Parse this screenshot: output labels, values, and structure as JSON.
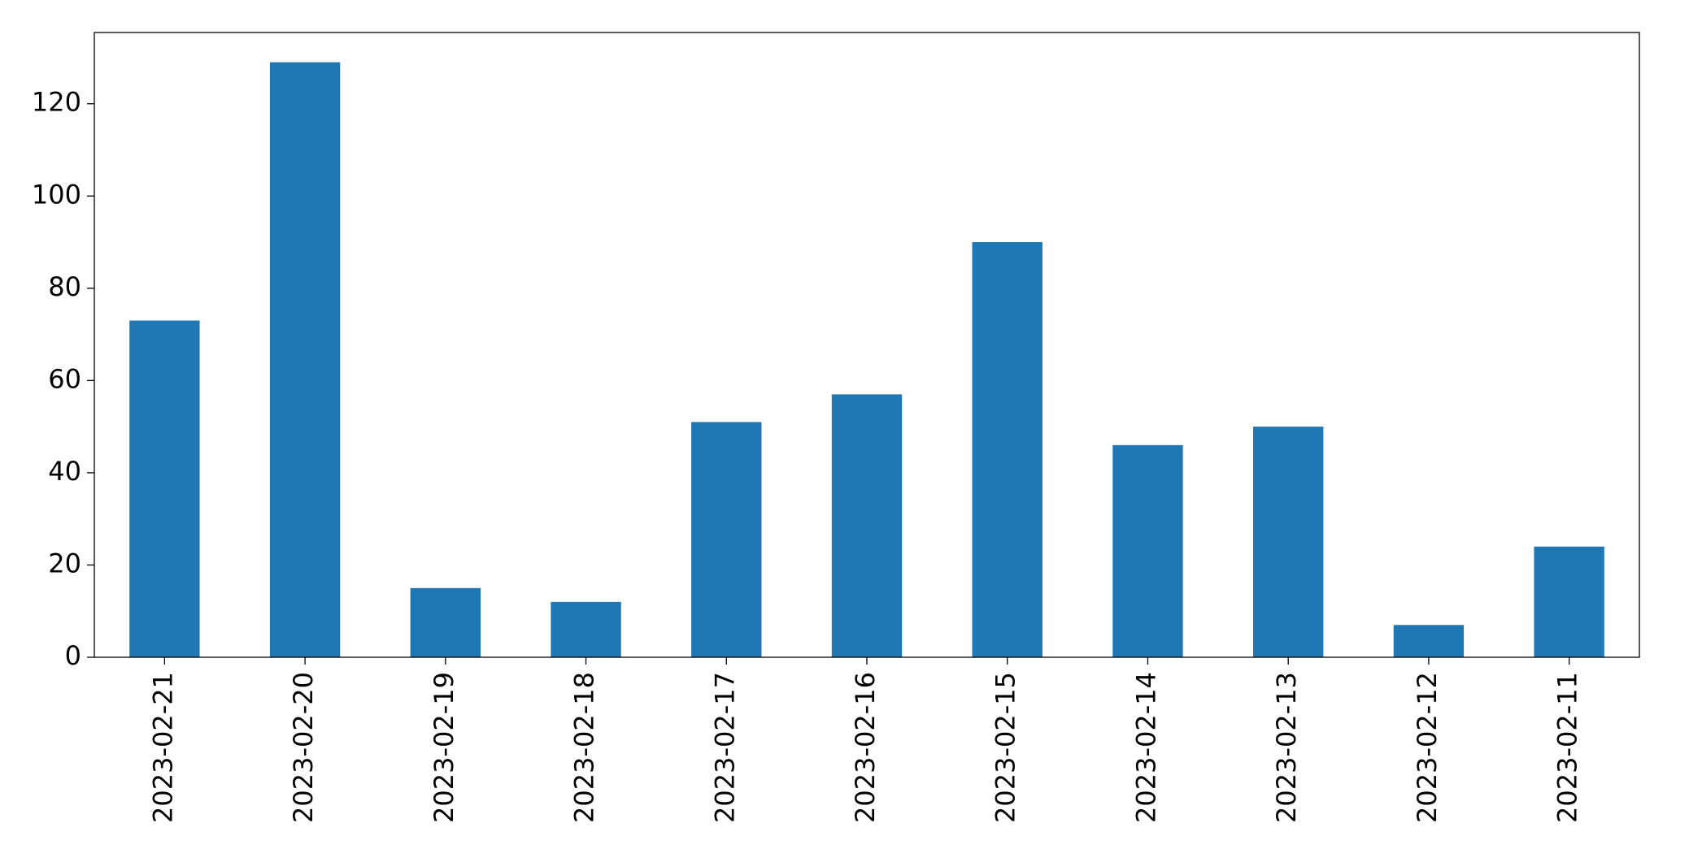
{
  "chart_data": {
    "type": "bar",
    "categories": [
      "2023-02-21",
      "2023-02-20",
      "2023-02-19",
      "2023-02-18",
      "2023-02-17",
      "2023-02-16",
      "2023-02-15",
      "2023-02-14",
      "2023-02-13",
      "2023-02-12",
      "2023-02-11"
    ],
    "values": [
      73,
      129,
      15,
      12,
      51,
      57,
      90,
      46,
      50,
      7,
      24
    ],
    "color": "#1f77b4",
    "ylim": [
      0,
      135.45
    ],
    "yticks": [
      0,
      20,
      40,
      60,
      80,
      100,
      120
    ],
    "grid": false
  }
}
